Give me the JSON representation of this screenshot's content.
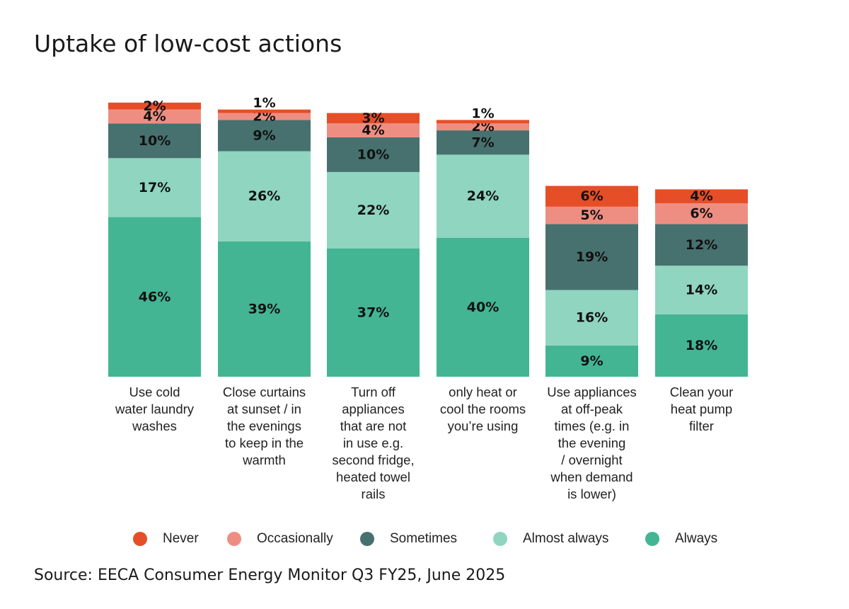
{
  "chart_data": {
    "type": "bar",
    "stacked": true,
    "title": "Uptake of low-cost actions",
    "source": "Source: EECA Consumer Energy Monitor Q3 FY25, June 2025",
    "unit": "%",
    "categories": [
      [
        "Use cold",
        "water laundry",
        "washes"
      ],
      [
        "Close curtains",
        "at sunset / in",
        "the evenings",
        "to keep in the",
        "warmth"
      ],
      [
        "Turn off",
        "appliances",
        "that are not",
        "in use e.g.",
        "second fridge,",
        "heated towel",
        "rails"
      ],
      [
        "only heat or",
        "cool the rooms",
        "you’re using"
      ],
      [
        "Use appliances",
        "at off-peak",
        "times (e.g. in",
        "the evening",
        "/ overnight",
        "when demand",
        "is lower)"
      ],
      [
        "Clean your",
        "heat pump",
        "filter"
      ]
    ],
    "series": [
      {
        "name": "Always",
        "color": "#43b592",
        "values": [
          46,
          39,
          37,
          40,
          9,
          18
        ]
      },
      {
        "name": "Almost always",
        "color": "#8fd5bf",
        "values": [
          17,
          26,
          22,
          24,
          16,
          14
        ]
      },
      {
        "name": "Sometimes",
        "color": "#47716f",
        "values": [
          10,
          9,
          10,
          7,
          19,
          12
        ]
      },
      {
        "name": "Occasionally",
        "color": "#ee8e82",
        "values": [
          4,
          2,
          4,
          2,
          5,
          6
        ]
      },
      {
        "name": "Never",
        "color": "#e64e28",
        "values": [
          2,
          1,
          3,
          1,
          6,
          4
        ]
      }
    ],
    "legend": [
      "Never",
      "Occasionally",
      "Sometimes",
      "Almost always",
      "Always"
    ],
    "legend_placement": "bottom",
    "ylim": [
      0,
      100
    ],
    "grid": false
  }
}
